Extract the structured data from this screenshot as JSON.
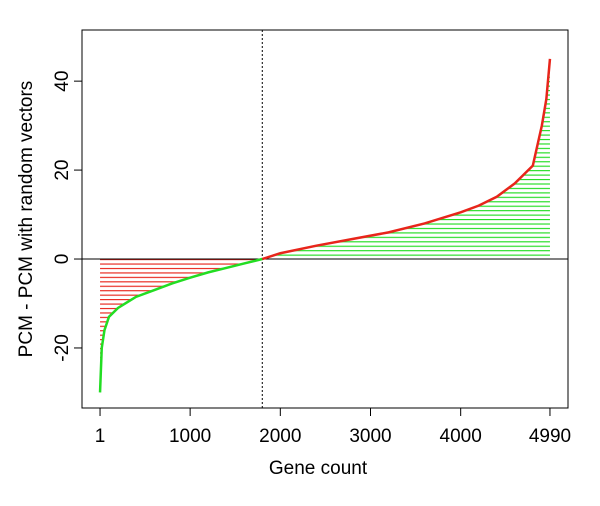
{
  "chart_data": {
    "type": "line",
    "x_label": "Gene count",
    "y_label": "PCM - PCM with random vectors",
    "x": [
      1,
      20,
      50,
      100,
      200,
      400,
      600,
      800,
      1000,
      1200,
      1400,
      1600,
      1800,
      2000,
      2400,
      2800,
      3200,
      3600,
      4000,
      4200,
      4400,
      4600,
      4700,
      4800,
      4900,
      4950,
      4990
    ],
    "values": [
      -30,
      -20,
      -16,
      -13,
      -11,
      -8.5,
      -7,
      -5.5,
      -4.2,
      -3,
      -2,
      -1,
      0,
      1.3,
      3,
      4.5,
      6,
      8,
      10.5,
      12,
      14,
      17,
      19,
      21,
      30,
      36,
      45
    ],
    "negative_line_color": "#22dd22",
    "negative_fill_color": "#e8251b",
    "positive_line_color": "#e8251b",
    "positive_fill_color": "#22dd22",
    "reference_x": 1800,
    "xlim": [
      -199,
      5190
    ],
    "ylim": [
      -33.5,
      51.5
    ],
    "xticks": [
      1,
      1000,
      2000,
      3000,
      4000,
      4990
    ],
    "yticks": [
      -20,
      0,
      20,
      40
    ]
  }
}
